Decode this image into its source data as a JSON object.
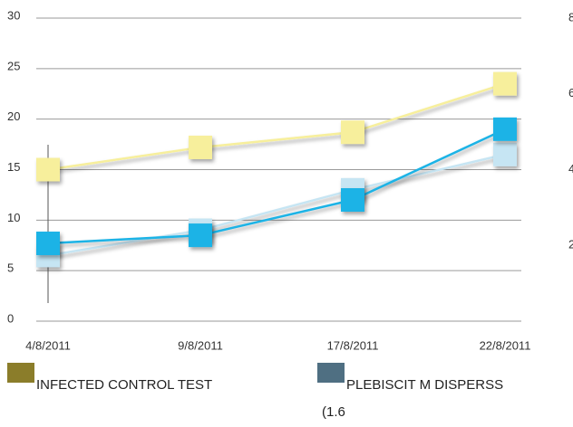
{
  "chart_data": {
    "type": "line",
    "categories": [
      "4/8/2011",
      "9/8/2011",
      "17/8/2011",
      "22/8/2011"
    ],
    "series": [
      {
        "color": "#f7ef9c",
        "values": [
          15,
          17.2,
          18.7,
          23.5
        ]
      },
      {
        "color": "#c6e5f3",
        "values": [
          6.5,
          9,
          13,
          16.5
        ]
      },
      {
        "color": "#1ab3e6",
        "values": [
          7.7,
          8.5,
          12,
          19
        ]
      }
    ],
    "ylim": [
      0,
      30
    ],
    "yticks": [
      0,
      5,
      10,
      15,
      20,
      25,
      30
    ],
    "y2lim": [
      0,
      8
    ],
    "y2ticks": [
      2,
      4,
      6,
      8
    ],
    "grid": true,
    "legend": [
      {
        "label": "INFECTED CONTROL TEST",
        "color": "#8b7d2a"
      },
      {
        "label": "PLEBISCIT M DISPERSS",
        "color": "#4f6f82"
      }
    ],
    "annotation": "(1.6"
  }
}
